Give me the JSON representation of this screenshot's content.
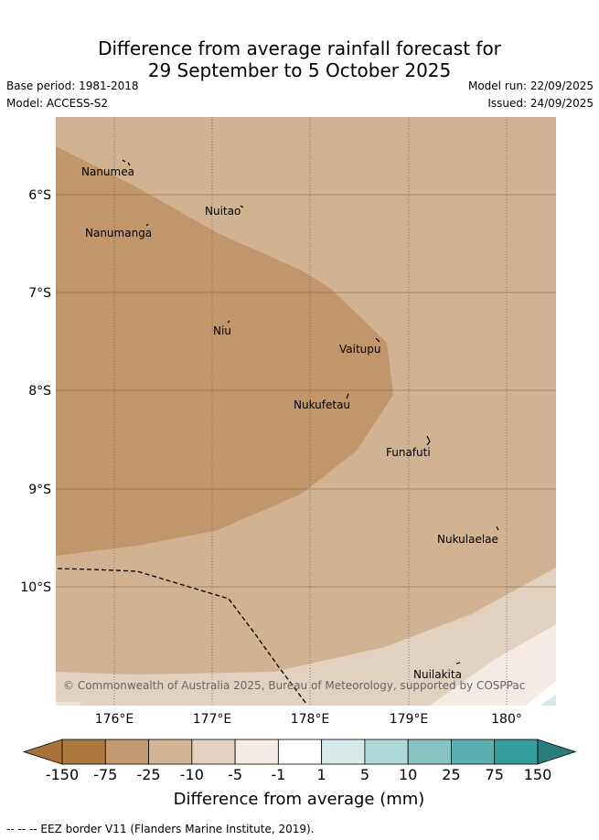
{
  "title": {
    "line1": "Difference from average rainfall forecast for",
    "line2": "29 September to 5 October 2025"
  },
  "meta": {
    "base_period": "Base period: 1981-2018",
    "model": "Model: ACCESS-S2",
    "model_run": "Model run: 22/09/2025",
    "issued": "Issued: 24/09/2025"
  },
  "axes": {
    "x_ticks": [
      "176°E",
      "177°E",
      "178°E",
      "179°E",
      "180°"
    ],
    "y_ticks": [
      "6°S",
      "7°S",
      "8°S",
      "9°S",
      "10°S"
    ]
  },
  "places": [
    {
      "name": "Nanumea"
    },
    {
      "name": "Nuitao"
    },
    {
      "name": "Nanumanga"
    },
    {
      "name": "Niu"
    },
    {
      "name": "Vaitupu"
    },
    {
      "name": "Nukufetau"
    },
    {
      "name": "Funafuti"
    },
    {
      "name": "Nukulaelae"
    },
    {
      "name": "Nuilakita"
    }
  ],
  "copyright": "© Commonwealth of Australia 2025, Bureau of Meteorology, supported by COSPPac",
  "colorbar": {
    "label": "Difference from average (mm)",
    "ticks": [
      "-150",
      "-75",
      "-25",
      "-10",
      "-5",
      "-1",
      "1",
      "5",
      "10",
      "25",
      "75",
      "150"
    ],
    "colors": [
      "#a8703a",
      "#ad783f",
      "#c29a6f",
      "#d3b495",
      "#e3d0be",
      "#f3ebe4",
      "#ffffff",
      "#d6eaea",
      "#afd8d8",
      "#87c3c3",
      "#5ab0b0",
      "#359d9d",
      "#2b7c7c"
    ]
  },
  "footnote": "--  --  -- EEZ border V11 (Flanders Marine Institute, 2019)."
}
